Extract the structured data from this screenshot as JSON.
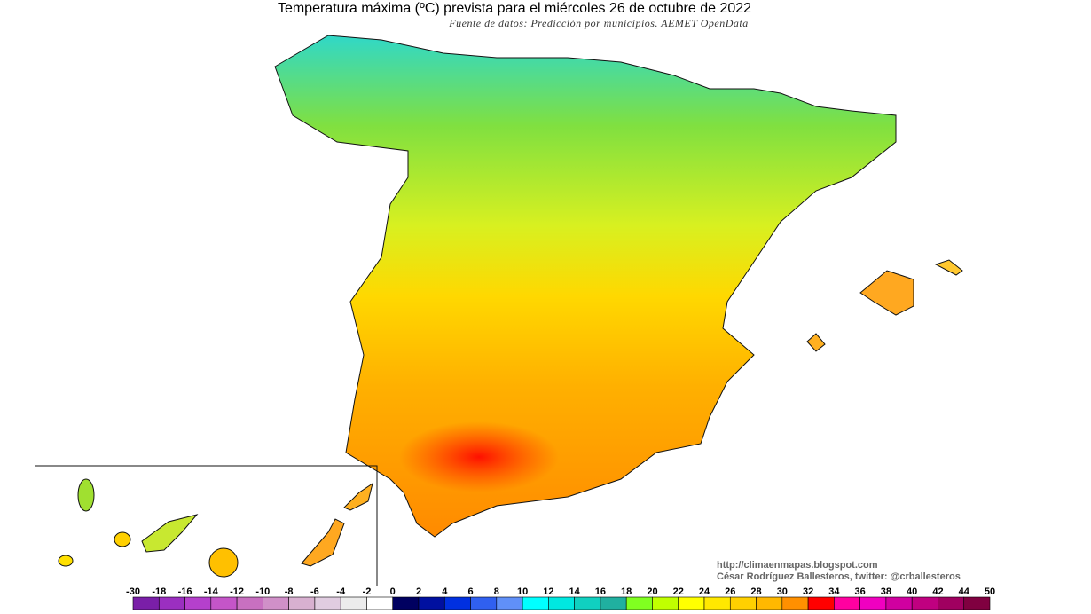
{
  "header": {
    "title": "Temperatura máxima (ºC) prevista para el miércoles 26 de octubre de 2022",
    "subtitle": "Fuente de datos: Predicción por municipios. AEMET OpenData"
  },
  "credits": {
    "url": "http://climaenmapas.blogspot.com",
    "author": "César Rodríguez Ballesteros, twitter: @crballesteros"
  },
  "legend": {
    "ticks": [
      -30,
      -18,
      -16,
      -14,
      -12,
      -10,
      -8,
      -6,
      -4,
      -2,
      0,
      2,
      4,
      6,
      8,
      10,
      12,
      14,
      16,
      18,
      20,
      22,
      24,
      26,
      28,
      30,
      32,
      34,
      36,
      38,
      40,
      42,
      44,
      50
    ],
    "colors": [
      "#7a1fa8",
      "#9b2fc0",
      "#b540cc",
      "#c455c8",
      "#c870c0",
      "#d090c8",
      "#d8b0d0",
      "#e0cce0",
      "#ececec",
      "#ffffff",
      "#000060",
      "#0010a0",
      "#0030e0",
      "#3060f0",
      "#6090f8",
      "#00ffff",
      "#00e8e0",
      "#10d0c0",
      "#20b0a0",
      "#80ff20",
      "#c0ff00",
      "#ffff00",
      "#ffe800",
      "#ffd000",
      "#ffb800",
      "#ff9000",
      "#ff0000",
      "#ff00a0",
      "#f000c0",
      "#d000a0",
      "#c00080",
      "#a00060",
      "#800040"
    ]
  }
}
